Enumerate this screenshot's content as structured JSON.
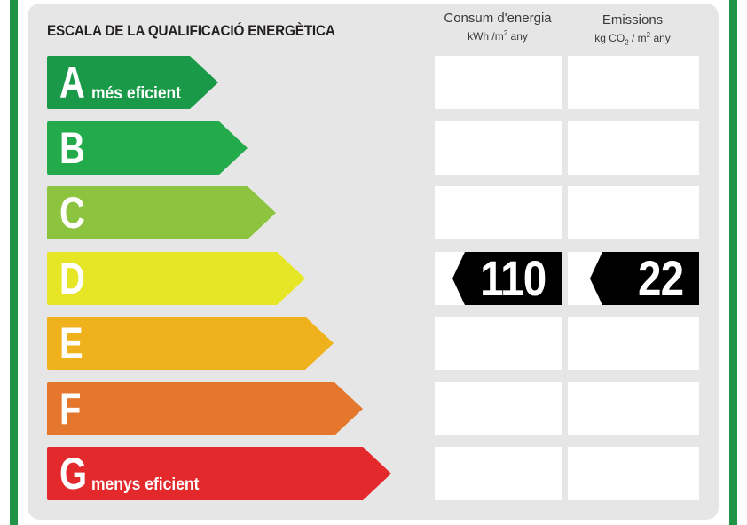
{
  "chart_data": {
    "type": "table",
    "title": "ESCALA DE LA QUALIFICACIÓ ENERGÈTICA",
    "columns": [
      {
        "name": "Consum d'energia",
        "unit_prefix": "kWh /m",
        "unit_sup": "2",
        "unit_suffix": " any"
      },
      {
        "name": "Emissions",
        "unit_prefix": "kg CO",
        "unit_sub": "2",
        "unit_mid": " / m",
        "unit_sup": "2",
        "unit_suffix": " any"
      }
    ],
    "classes": [
      {
        "letter": "A",
        "label": "més eficient",
        "color": "#1a9a48"
      },
      {
        "letter": "B",
        "label": "",
        "color": "#23aa4a"
      },
      {
        "letter": "C",
        "label": "",
        "color": "#8cc43f"
      },
      {
        "letter": "D",
        "label": "",
        "color": "#e7e626"
      },
      {
        "letter": "E",
        "label": "",
        "color": "#f0b21c"
      },
      {
        "letter": "F",
        "label": "",
        "color": "#e4772b"
      },
      {
        "letter": "G",
        "label": "menys eficient",
        "color": "#e3292c"
      }
    ],
    "rating": {
      "class": "D",
      "energy_consumption": "110",
      "emissions": "22"
    }
  }
}
